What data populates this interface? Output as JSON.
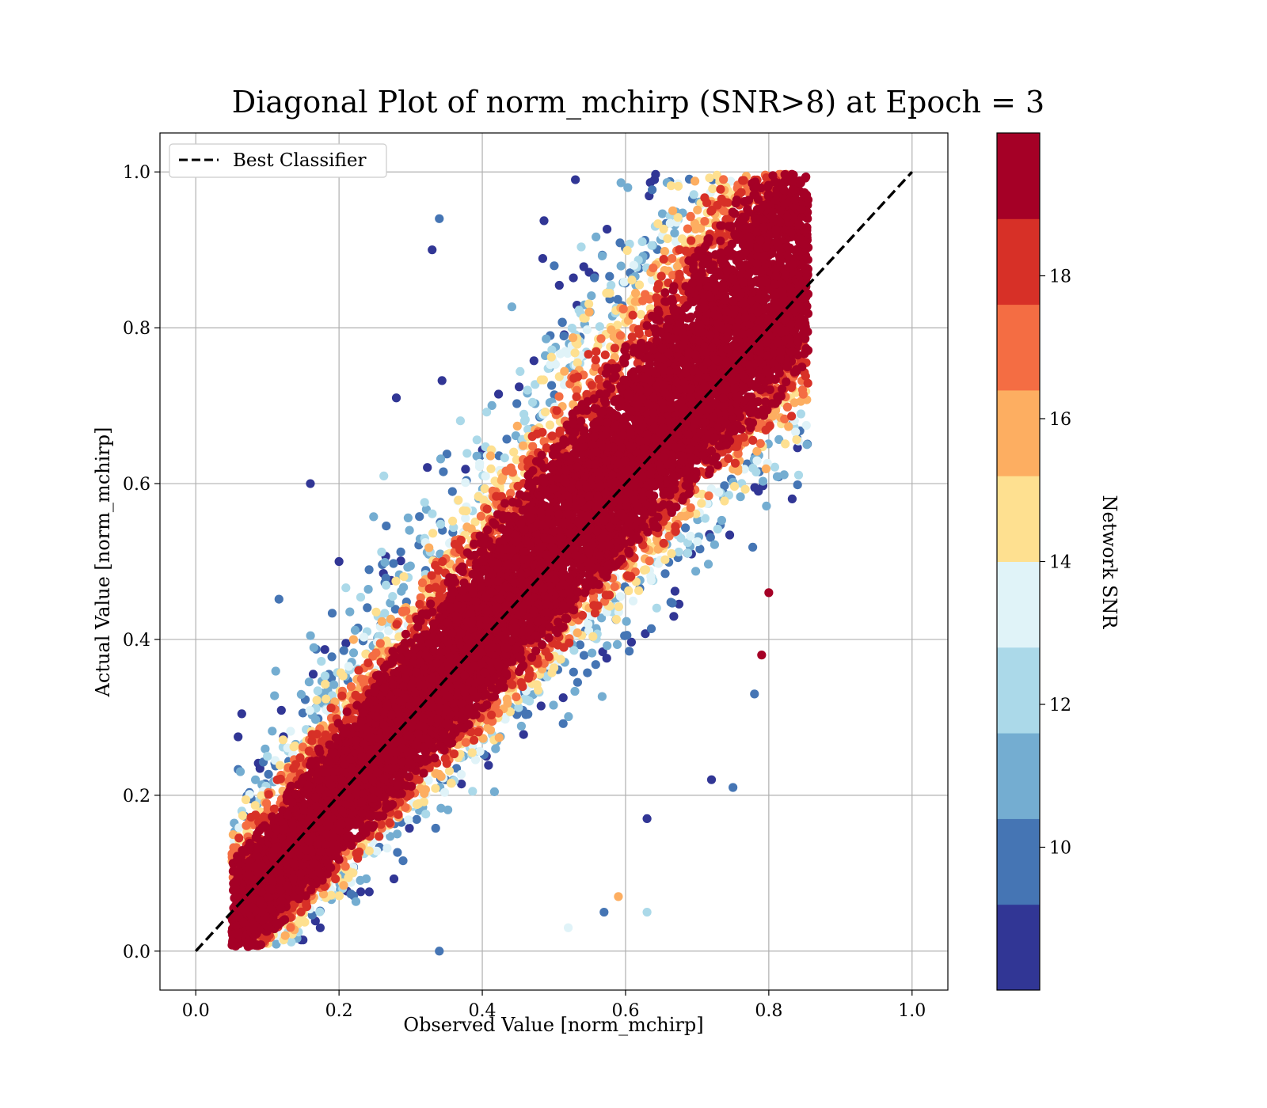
{
  "chart_data": {
    "type": "scatter",
    "title": "Diagonal Plot of norm_mchirp (SNR>8) at Epoch = 3",
    "xlabel": "Observed Value [norm_mchirp]",
    "ylabel": "Actual Value [norm_mchirp]",
    "xlim": [
      -0.05,
      1.05
    ],
    "ylim": [
      -0.05,
      1.05
    ],
    "xticks": [
      "0.0",
      "0.2",
      "0.4",
      "0.6",
      "0.8",
      "1.0"
    ],
    "yticks": [
      "0.0",
      "0.2",
      "0.4",
      "0.6",
      "0.8",
      "1.0"
    ],
    "grid": true,
    "legend": {
      "placement": "top-left",
      "entries": [
        "Best Classifier"
      ]
    },
    "reference_line": {
      "name": "Best Classifier",
      "x": [
        0.0,
        1.0
      ],
      "y": [
        0.0,
        1.0
      ],
      "style": "dashed",
      "color": "#000000"
    },
    "colorbar": {
      "label": "Network SNR",
      "range": [
        8,
        20
      ],
      "ticks": [
        "10",
        "12",
        "14",
        "16",
        "18"
      ],
      "tick_values": [
        10,
        12,
        14,
        16,
        18
      ],
      "colors": [
        "#313695",
        "#4575b4",
        "#74add1",
        "#abd9e9",
        "#e0f3f8",
        "#fee090",
        "#fdae61",
        "#f46d43",
        "#d73027",
        "#a50026"
      ]
    },
    "scatter": {
      "description": "dense diagonal cloud; high-SNR points concentrated along the diagonal, low-SNR points spread further away",
      "band_lower_edge_x_at_y0": 0.05,
      "band_x_max": 0.85,
      "band_y_max": 1.0,
      "sample_points": [
        {
          "x": 0.16,
          "y": 0.6,
          "snr": 8.5
        },
        {
          "x": 0.34,
          "y": 0.94,
          "snr": 9.5
        },
        {
          "x": 0.33,
          "y": 0.9,
          "snr": 8.5
        },
        {
          "x": 0.53,
          "y": 0.99,
          "snr": 8.5
        },
        {
          "x": 0.72,
          "y": 0.22,
          "snr": 8.5
        },
        {
          "x": 0.75,
          "y": 0.21,
          "snr": 10.0
        },
        {
          "x": 0.63,
          "y": 0.17,
          "snr": 8.5
        },
        {
          "x": 0.57,
          "y": 0.05,
          "snr": 10.0
        },
        {
          "x": 0.59,
          "y": 0.07,
          "snr": 15.5
        },
        {
          "x": 0.52,
          "y": 0.03,
          "snr": 13.5
        },
        {
          "x": 0.63,
          "y": 0.05,
          "snr": 12.5
        },
        {
          "x": 0.1,
          "y": 0.25,
          "snr": 12.0
        },
        {
          "x": 0.28,
          "y": 0.71,
          "snr": 8.5
        },
        {
          "x": 0.2,
          "y": 0.5,
          "snr": 8.5
        },
        {
          "x": 0.8,
          "y": 0.46,
          "snr": 19.5
        },
        {
          "x": 0.79,
          "y": 0.38,
          "snr": 19.5
        },
        {
          "x": 0.78,
          "y": 0.33,
          "snr": 9.5
        },
        {
          "x": 0.34,
          "y": 0.0,
          "snr": 9.5
        }
      ]
    }
  }
}
